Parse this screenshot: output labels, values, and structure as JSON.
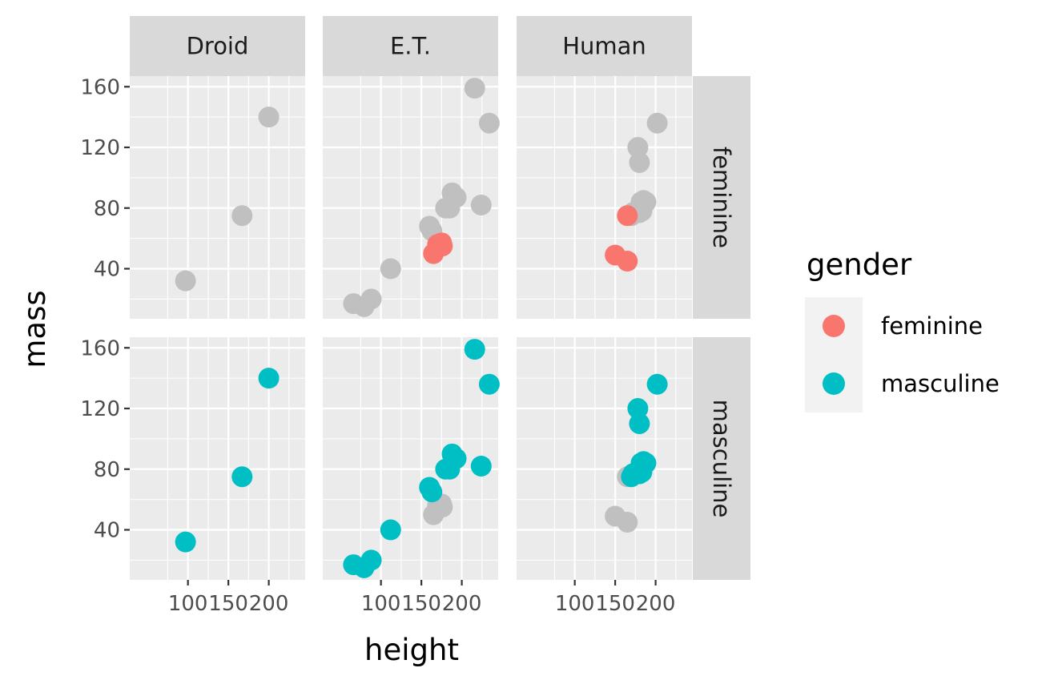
{
  "chart_data": {
    "type": "scatter",
    "facet_columns": [
      "Droid",
      "E.T.",
      "Human"
    ],
    "facet_rows": [
      "feminine",
      "masculine"
    ],
    "xlabel": "height",
    "ylabel": "mass",
    "xlim": [
      28,
      245
    ],
    "ylim": [
      7,
      167
    ],
    "x_ticks": [
      100,
      150,
      200
    ],
    "y_ticks": [
      40,
      80,
      120,
      160
    ],
    "background_color": "#c0c0c0",
    "grid": true,
    "legend": {
      "title": "gender",
      "position": "right",
      "entries": [
        {
          "label": "feminine",
          "color": "#F8766D"
        },
        {
          "label": "masculine",
          "color": "#00BFC4"
        }
      ]
    },
    "panels": [
      {
        "column": "Droid",
        "points": [
          {
            "height": 97,
            "mass": 32,
            "gender": "masculine"
          },
          {
            "height": 167,
            "mass": 75,
            "gender": "masculine"
          },
          {
            "height": 200,
            "mass": 140,
            "gender": "masculine"
          }
        ]
      },
      {
        "column": "E.T.",
        "points": [
          {
            "height": 66,
            "mass": 17,
            "gender": "masculine"
          },
          {
            "height": 79,
            "mass": 15,
            "gender": "masculine"
          },
          {
            "height": 88,
            "mass": 20,
            "gender": "masculine"
          },
          {
            "height": 112,
            "mass": 40,
            "gender": "masculine"
          },
          {
            "height": 160,
            "mass": 68,
            "gender": "masculine"
          },
          {
            "height": 163,
            "mass": 65,
            "gender": "masculine"
          },
          {
            "height": 165,
            "mass": 50,
            "gender": "feminine"
          },
          {
            "height": 170,
            "mass": 56,
            "gender": "feminine"
          },
          {
            "height": 175,
            "mass": 57,
            "gender": "feminine"
          },
          {
            "height": 176,
            "mass": 55,
            "gender": "feminine"
          },
          {
            "height": 180,
            "mass": 80,
            "gender": "masculine"
          },
          {
            "height": 185,
            "mass": 80,
            "gender": "masculine"
          },
          {
            "height": 188,
            "mass": 90,
            "gender": "masculine"
          },
          {
            "height": 193,
            "mass": 87,
            "gender": "masculine"
          },
          {
            "height": 216,
            "mass": 159,
            "gender": "masculine"
          },
          {
            "height": 224,
            "mass": 82,
            "gender": "masculine"
          },
          {
            "height": 234,
            "mass": 136,
            "gender": "masculine"
          }
        ]
      },
      {
        "column": "Human",
        "points": [
          {
            "height": 150,
            "mass": 49,
            "gender": "feminine"
          },
          {
            "height": 165,
            "mass": 45,
            "gender": "feminine"
          },
          {
            "height": 165,
            "mass": 75,
            "gender": "feminine"
          },
          {
            "height": 170,
            "mass": 75,
            "gender": "masculine"
          },
          {
            "height": 172,
            "mass": 77,
            "gender": "masculine"
          },
          {
            "height": 178,
            "mass": 120,
            "gender": "masculine"
          },
          {
            "height": 180,
            "mass": 110,
            "gender": "masculine"
          },
          {
            "height": 180,
            "mass": 77,
            "gender": "masculine"
          },
          {
            "height": 182,
            "mass": 84,
            "gender": "masculine"
          },
          {
            "height": 183,
            "mass": 78,
            "gender": "masculine"
          },
          {
            "height": 185,
            "mass": 85,
            "gender": "masculine"
          },
          {
            "height": 188,
            "mass": 84,
            "gender": "masculine"
          },
          {
            "height": 202,
            "mass": 136,
            "gender": "masculine"
          }
        ]
      }
    ]
  }
}
